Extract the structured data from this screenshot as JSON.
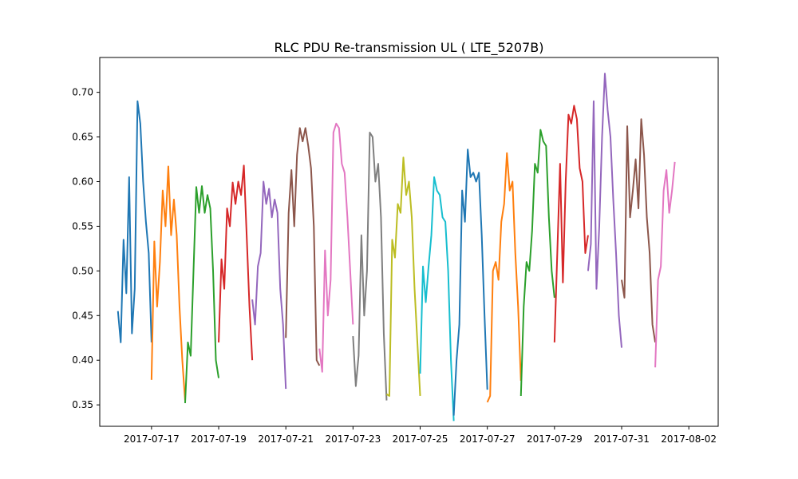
{
  "chart_data": {
    "type": "line",
    "title": "RLC PDU Re-transmission UL ( LTE_5207B)",
    "xlabel": "",
    "ylabel": "",
    "grid": false,
    "xlim": [
      "2017-07-15T11:00",
      "2017-08-02T21:00"
    ],
    "ylim": [
      0.326,
      0.739
    ],
    "x_ticks": [
      "2017-07-17",
      "2017-07-19",
      "2017-07-21",
      "2017-07-23",
      "2017-07-25",
      "2017-07-27",
      "2017-07-29",
      "2017-07-31",
      "2017-08-02"
    ],
    "y_ticks": [
      0.35,
      0.4,
      0.45,
      0.5,
      0.55,
      0.6,
      0.65,
      0.7
    ],
    "y_tick_labels": [
      "0.35",
      "0.40",
      "0.45",
      "0.50",
      "0.55",
      "0.60",
      "0.65",
      "0.70"
    ],
    "series": [
      {
        "color": "#1f77b4",
        "x": [
          "2017-07-16T00:00",
          "2017-07-16T02:00",
          "2017-07-16T04:00",
          "2017-07-16T06:00",
          "2017-07-16T08:00",
          "2017-07-16T10:00",
          "2017-07-16T12:00",
          "2017-07-16T14:00",
          "2017-07-16T16:00",
          "2017-07-16T18:00",
          "2017-07-16T20:00",
          "2017-07-16T22:00",
          "2017-07-17T00:00"
        ],
        "y": [
          0.455,
          0.42,
          0.535,
          0.475,
          0.605,
          0.43,
          0.48,
          0.69,
          0.665,
          0.6,
          0.555,
          0.52,
          0.42
        ]
      },
      {
        "color": "#ff7f0e",
        "x": [
          "2017-07-17T00:00",
          "2017-07-17T02:00",
          "2017-07-17T04:00",
          "2017-07-17T06:00",
          "2017-07-17T08:00",
          "2017-07-17T10:00",
          "2017-07-17T12:00",
          "2017-07-17T14:00",
          "2017-07-17T16:00",
          "2017-07-17T18:00",
          "2017-07-17T20:00",
          "2017-07-17T22:00",
          "2017-07-18T00:00"
        ],
        "y": [
          0.378,
          0.533,
          0.46,
          0.51,
          0.59,
          0.55,
          0.617,
          0.54,
          0.58,
          0.54,
          0.46,
          0.4,
          0.355
        ]
      },
      {
        "color": "#2ca02c",
        "x": [
          "2017-07-18T00:00",
          "2017-07-18T02:00",
          "2017-07-18T04:00",
          "2017-07-18T06:00",
          "2017-07-18T08:00",
          "2017-07-18T10:00",
          "2017-07-18T12:00",
          "2017-07-18T14:00",
          "2017-07-18T16:00",
          "2017-07-18T18:00",
          "2017-07-18T20:00",
          "2017-07-18T22:00",
          "2017-07-19T00:00"
        ],
        "y": [
          0.352,
          0.42,
          0.405,
          0.5,
          0.594,
          0.565,
          0.595,
          0.565,
          0.585,
          0.57,
          0.5,
          0.4,
          0.38
        ]
      },
      {
        "color": "#d62728",
        "x": [
          "2017-07-19T00:00",
          "2017-07-19T02:00",
          "2017-07-19T04:00",
          "2017-07-19T06:00",
          "2017-07-19T08:00",
          "2017-07-19T10:00",
          "2017-07-19T12:00",
          "2017-07-19T14:00",
          "2017-07-19T16:00",
          "2017-07-19T18:00",
          "2017-07-19T20:00",
          "2017-07-19T22:00",
          "2017-07-20T00:00"
        ],
        "y": [
          0.42,
          0.513,
          0.48,
          0.57,
          0.55,
          0.599,
          0.575,
          0.6,
          0.585,
          0.618,
          0.54,
          0.46,
          0.4
        ]
      },
      {
        "color": "#9467bd",
        "x": [
          "2017-07-20T00:00",
          "2017-07-20T02:00",
          "2017-07-20T04:00",
          "2017-07-20T06:00",
          "2017-07-20T08:00",
          "2017-07-20T10:00",
          "2017-07-20T12:00",
          "2017-07-20T14:00",
          "2017-07-20T16:00",
          "2017-07-20T18:00",
          "2017-07-20T20:00",
          "2017-07-20T22:00",
          "2017-07-21T00:00"
        ],
        "y": [
          0.468,
          0.44,
          0.505,
          0.52,
          0.6,
          0.575,
          0.592,
          0.56,
          0.58,
          0.565,
          0.48,
          0.44,
          0.368
        ]
      },
      {
        "color": "#8c564b",
        "x": [
          "2017-07-21T00:00",
          "2017-07-21T02:00",
          "2017-07-21T04:00",
          "2017-07-21T06:00",
          "2017-07-21T08:00",
          "2017-07-21T10:00",
          "2017-07-21T12:00",
          "2017-07-21T14:00",
          "2017-07-21T16:00",
          "2017-07-21T18:00",
          "2017-07-21T20:00",
          "2017-07-21T22:00",
          "2017-07-22T00:00"
        ],
        "y": [
          0.425,
          0.565,
          0.613,
          0.55,
          0.63,
          0.66,
          0.645,
          0.66,
          0.64,
          0.615,
          0.55,
          0.4,
          0.394
        ]
      },
      {
        "color": "#e377c2",
        "x": [
          "2017-07-22T00:00",
          "2017-07-22T02:00",
          "2017-07-22T04:00",
          "2017-07-22T06:00",
          "2017-07-22T08:00",
          "2017-07-22T10:00",
          "2017-07-22T12:00",
          "2017-07-22T14:00",
          "2017-07-22T16:00",
          "2017-07-22T18:00",
          "2017-07-22T20:00",
          "2017-07-22T22:00",
          "2017-07-23T00:00"
        ],
        "y": [
          0.413,
          0.387,
          0.523,
          0.45,
          0.49,
          0.655,
          0.665,
          0.66,
          0.62,
          0.61,
          0.56,
          0.5,
          0.44
        ]
      },
      {
        "color": "#7f7f7f",
        "x": [
          "2017-07-23T00:00",
          "2017-07-23T02:00",
          "2017-07-23T04:00",
          "2017-07-23T06:00",
          "2017-07-23T08:00",
          "2017-07-23T10:00",
          "2017-07-23T12:00",
          "2017-07-23T14:00",
          "2017-07-23T16:00",
          "2017-07-23T18:00",
          "2017-07-23T20:00",
          "2017-07-23T22:00",
          "2017-07-24T00:00"
        ],
        "y": [
          0.427,
          0.371,
          0.405,
          0.54,
          0.45,
          0.5,
          0.655,
          0.65,
          0.6,
          0.62,
          0.56,
          0.43,
          0.355
        ]
      },
      {
        "color": "#bcbd22",
        "x": [
          "2017-07-24T00:00",
          "2017-07-24T02:00",
          "2017-07-24T04:00",
          "2017-07-24T06:00",
          "2017-07-24T08:00",
          "2017-07-24T10:00",
          "2017-07-24T12:00",
          "2017-07-24T14:00",
          "2017-07-24T16:00",
          "2017-07-24T18:00",
          "2017-07-24T20:00",
          "2017-07-24T22:00",
          "2017-07-25T00:00"
        ],
        "y": [
          0.362,
          0.36,
          0.535,
          0.515,
          0.575,
          0.565,
          0.627,
          0.585,
          0.6,
          0.56,
          0.48,
          0.42,
          0.36
        ]
      },
      {
        "color": "#17becf",
        "x": [
          "2017-07-25T00:00",
          "2017-07-25T02:00",
          "2017-07-25T04:00",
          "2017-07-25T06:00",
          "2017-07-25T08:00",
          "2017-07-25T10:00",
          "2017-07-25T12:00",
          "2017-07-25T14:00",
          "2017-07-25T16:00",
          "2017-07-25T18:00",
          "2017-07-25T20:00",
          "2017-07-25T22:00",
          "2017-07-26T00:00"
        ],
        "y": [
          0.385,
          0.505,
          0.465,
          0.505,
          0.54,
          0.605,
          0.59,
          0.585,
          0.56,
          0.555,
          0.5,
          0.4,
          0.332
        ]
      },
      {
        "color": "#1f77b4",
        "x": [
          "2017-07-26T00:00",
          "2017-07-26T02:00",
          "2017-07-26T04:00",
          "2017-07-26T06:00",
          "2017-07-26T08:00",
          "2017-07-26T10:00",
          "2017-07-26T12:00",
          "2017-07-26T14:00",
          "2017-07-26T16:00",
          "2017-07-26T18:00",
          "2017-07-26T20:00",
          "2017-07-26T22:00",
          "2017-07-27T00:00"
        ],
        "y": [
          0.338,
          0.4,
          0.44,
          0.59,
          0.555,
          0.636,
          0.605,
          0.61,
          0.6,
          0.61,
          0.54,
          0.45,
          0.367
        ]
      },
      {
        "color": "#ff7f0e",
        "x": [
          "2017-07-27T00:00",
          "2017-07-27T02:00",
          "2017-07-27T04:00",
          "2017-07-27T06:00",
          "2017-07-27T08:00",
          "2017-07-27T10:00",
          "2017-07-27T12:00",
          "2017-07-27T14:00",
          "2017-07-27T16:00",
          "2017-07-27T18:00",
          "2017-07-27T20:00",
          "2017-07-27T22:00",
          "2017-07-28T00:00"
        ],
        "y": [
          0.353,
          0.36,
          0.5,
          0.51,
          0.49,
          0.555,
          0.575,
          0.632,
          0.59,
          0.6,
          0.52,
          0.46,
          0.377
        ]
      },
      {
        "color": "#2ca02c",
        "x": [
          "2017-07-28T00:00",
          "2017-07-28T02:00",
          "2017-07-28T04:00",
          "2017-07-28T06:00",
          "2017-07-28T08:00",
          "2017-07-28T10:00",
          "2017-07-28T12:00",
          "2017-07-28T14:00",
          "2017-07-28T16:00",
          "2017-07-28T18:00",
          "2017-07-28T20:00",
          "2017-07-28T22:00",
          "2017-07-29T00:00"
        ],
        "y": [
          0.36,
          0.46,
          0.51,
          0.5,
          0.545,
          0.62,
          0.61,
          0.658,
          0.645,
          0.64,
          0.56,
          0.5,
          0.47
        ]
      },
      {
        "color": "#d62728",
        "x": [
          "2017-07-29T00:00",
          "2017-07-29T02:00",
          "2017-07-29T04:00",
          "2017-07-29T06:00",
          "2017-07-29T08:00",
          "2017-07-29T10:00",
          "2017-07-29T12:00",
          "2017-07-29T14:00",
          "2017-07-29T16:00",
          "2017-07-29T18:00",
          "2017-07-29T20:00",
          "2017-07-29T22:00",
          "2017-07-30T00:00"
        ],
        "y": [
          0.42,
          0.52,
          0.62,
          0.487,
          0.6,
          0.675,
          0.665,
          0.685,
          0.67,
          0.615,
          0.6,
          0.52,
          0.54
        ]
      },
      {
        "color": "#9467bd",
        "x": [
          "2017-07-30T00:00",
          "2017-07-30T02:00",
          "2017-07-30T04:00",
          "2017-07-30T06:00",
          "2017-07-30T08:00",
          "2017-07-30T10:00",
          "2017-07-30T12:00",
          "2017-07-30T14:00",
          "2017-07-30T16:00",
          "2017-07-30T18:00",
          "2017-07-30T20:00",
          "2017-07-30T22:00",
          "2017-07-31T00:00"
        ],
        "y": [
          0.5,
          0.53,
          0.69,
          0.48,
          0.55,
          0.65,
          0.721,
          0.68,
          0.65,
          0.58,
          0.52,
          0.45,
          0.414
        ]
      },
      {
        "color": "#8c564b",
        "x": [
          "2017-07-31T00:00",
          "2017-07-31T02:00",
          "2017-07-31T04:00",
          "2017-07-31T06:00",
          "2017-07-31T08:00",
          "2017-07-31T10:00",
          "2017-07-31T12:00",
          "2017-07-31T14:00",
          "2017-07-31T16:00",
          "2017-07-31T18:00",
          "2017-07-31T20:00",
          "2017-07-31T22:00",
          "2017-08-01T00:00"
        ],
        "y": [
          0.49,
          0.47,
          0.662,
          0.56,
          0.59,
          0.625,
          0.57,
          0.67,
          0.63,
          0.56,
          0.52,
          0.44,
          0.42
        ]
      },
      {
        "color": "#e377c2",
        "x": [
          "2017-08-01T00:00",
          "2017-08-01T02:00",
          "2017-08-01T04:00",
          "2017-08-01T06:00",
          "2017-08-01T08:00",
          "2017-08-01T10:00",
          "2017-08-01T12:00",
          "2017-08-01T14:00"
        ],
        "y": [
          0.392,
          0.49,
          0.505,
          0.59,
          0.613,
          0.565,
          0.59,
          0.622
        ]
      }
    ]
  }
}
